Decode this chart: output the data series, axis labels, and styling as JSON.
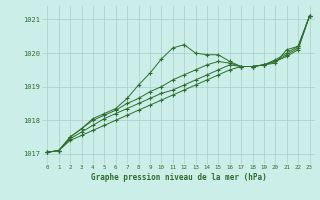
{
  "xlabel": "Graphe pression niveau de la mer (hPa)",
  "bg_color": "#cceee8",
  "grid_color": "#aacccc",
  "line_color": "#2d6e2d",
  "ylim": [
    1016.7,
    1021.4
  ],
  "xlim": [
    -0.5,
    23.5
  ],
  "yticks": [
    1017,
    1018,
    1019,
    1020,
    1021
  ],
  "xticks": [
    0,
    1,
    2,
    3,
    4,
    5,
    6,
    7,
    8,
    9,
    10,
    11,
    12,
    13,
    14,
    15,
    16,
    17,
    18,
    19,
    20,
    21,
    22,
    23
  ],
  "series": [
    [
      1017.05,
      1017.1,
      1017.5,
      1017.75,
      1018.05,
      1018.2,
      1018.35,
      1018.65,
      1019.05,
      1019.4,
      1019.82,
      1020.15,
      1020.25,
      1020.0,
      1019.95,
      1019.95,
      1019.75,
      1019.6,
      1019.6,
      1019.65,
      1019.7,
      1020.1,
      1020.2,
      1021.1
    ],
    [
      1017.05,
      1017.1,
      1017.5,
      1017.75,
      1018.0,
      1018.15,
      1018.3,
      1018.5,
      1018.65,
      1018.85,
      1019.0,
      1019.2,
      1019.35,
      1019.5,
      1019.65,
      1019.75,
      1019.7,
      1019.6,
      1019.6,
      1019.65,
      1019.8,
      1020.0,
      1020.2,
      1021.1
    ],
    [
      1017.05,
      1017.1,
      1017.45,
      1017.65,
      1017.85,
      1018.05,
      1018.2,
      1018.35,
      1018.5,
      1018.65,
      1018.8,
      1018.9,
      1019.05,
      1019.2,
      1019.35,
      1019.5,
      1019.65,
      1019.6,
      1019.6,
      1019.65,
      1019.75,
      1019.95,
      1020.15,
      1021.1
    ],
    [
      1017.05,
      1017.1,
      1017.4,
      1017.55,
      1017.7,
      1017.85,
      1018.0,
      1018.15,
      1018.3,
      1018.45,
      1018.6,
      1018.75,
      1018.9,
      1019.05,
      1019.2,
      1019.35,
      1019.5,
      1019.6,
      1019.6,
      1019.65,
      1019.75,
      1019.9,
      1020.1,
      1021.1
    ]
  ]
}
